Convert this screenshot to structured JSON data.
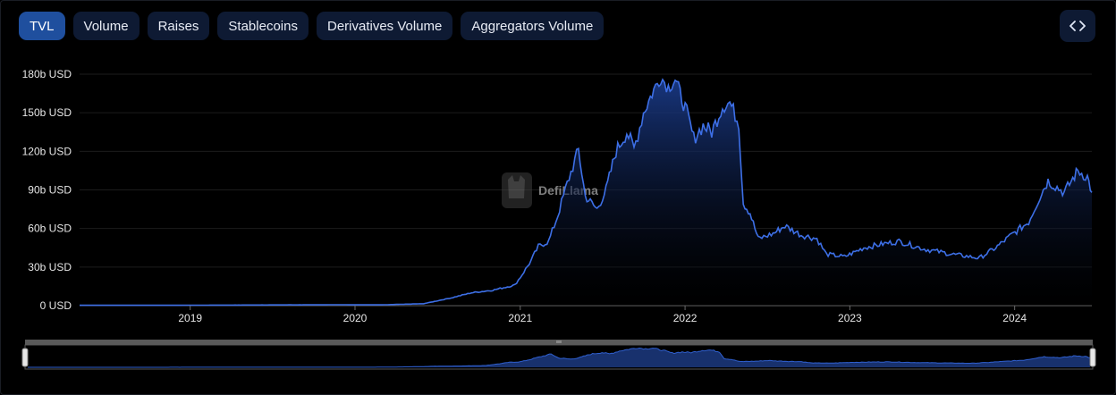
{
  "tabs": [
    {
      "label": "TVL",
      "active": true
    },
    {
      "label": "Volume",
      "active": false
    },
    {
      "label": "Raises",
      "active": false
    },
    {
      "label": "Stablecoins",
      "active": false
    },
    {
      "label": "Derivatives Volume",
      "active": false
    },
    {
      "label": "Aggregators Volume",
      "active": false
    }
  ],
  "embed_icon": "code-brackets-icon",
  "watermark": {
    "text": "DefiLlama",
    "icon": "llama-logo-icon"
  },
  "brush": {
    "range": [
      0,
      1
    ],
    "grip_icon": "grip-lines-icon"
  },
  "colors": {
    "line": "#3d6fe6",
    "area_top": "#1b3c8c",
    "area_bottom": "#000000",
    "tab_active": "#1f4f9e",
    "tab": "#0e1a33"
  },
  "chart_data": {
    "type": "area",
    "title": "",
    "xlabel": "",
    "ylabel": "",
    "y_unit": "USD",
    "ylim": [
      0,
      180
    ],
    "yticks": [
      0,
      30,
      60,
      90,
      120,
      150,
      180
    ],
    "ytick_labels": [
      "0 USD",
      "30b USD",
      "60b USD",
      "90b USD",
      "120b USD",
      "150b USD",
      "180b USD"
    ],
    "xlim": [
      "2018-05-01",
      "2024-06-20"
    ],
    "xticks": [
      "2019-01-01",
      "2020-01-01",
      "2021-01-01",
      "2022-01-01",
      "2023-01-01",
      "2024-01-01"
    ],
    "xtick_labels": [
      "2019",
      "2020",
      "2021",
      "2022",
      "2023",
      "2024"
    ],
    "grid": true,
    "series": [
      {
        "name": "",
        "points": [
          [
            "2018-05-01",
            0.3
          ],
          [
            "2018-12-01",
            0.3
          ],
          [
            "2019-06-01",
            0.5
          ],
          [
            "2019-12-01",
            0.7
          ],
          [
            "2020-03-01",
            0.6
          ],
          [
            "2020-06-01",
            1.5
          ],
          [
            "2020-08-01",
            6
          ],
          [
            "2020-09-15",
            10
          ],
          [
            "2020-11-01",
            12
          ],
          [
            "2020-12-20",
            16
          ],
          [
            "2021-01-05",
            24
          ],
          [
            "2021-01-25",
            35
          ],
          [
            "2021-02-10",
            46
          ],
          [
            "2021-03-05",
            50
          ],
          [
            "2021-03-25",
            70
          ],
          [
            "2021-04-15",
            95
          ],
          [
            "2021-05-10",
            121
          ],
          [
            "2021-05-25",
            85
          ],
          [
            "2021-06-20",
            75
          ],
          [
            "2021-07-10",
            90
          ],
          [
            "2021-08-01",
            120
          ],
          [
            "2021-08-25",
            135
          ],
          [
            "2021-09-10",
            122
          ],
          [
            "2021-10-01",
            150
          ],
          [
            "2021-10-20",
            165
          ],
          [
            "2021-11-08",
            178
          ],
          [
            "2021-11-25",
            170
          ],
          [
            "2021-12-10",
            176
          ],
          [
            "2022-01-05",
            150
          ],
          [
            "2022-01-20",
            130
          ],
          [
            "2022-02-10",
            140
          ],
          [
            "2022-03-01",
            135
          ],
          [
            "2022-03-25",
            155
          ],
          [
            "2022-04-10",
            158
          ],
          [
            "2022-04-30",
            142
          ],
          [
            "2022-05-10",
            80
          ],
          [
            "2022-05-25",
            72
          ],
          [
            "2022-06-12",
            52
          ],
          [
            "2022-07-15",
            56
          ],
          [
            "2022-08-10",
            62
          ],
          [
            "2022-09-15",
            55
          ],
          [
            "2022-10-20",
            52
          ],
          [
            "2022-11-10",
            40
          ],
          [
            "2022-12-20",
            38
          ],
          [
            "2023-02-01",
            45
          ],
          [
            "2023-03-15",
            48
          ],
          [
            "2023-04-20",
            50
          ],
          [
            "2023-06-15",
            44
          ],
          [
            "2023-08-15",
            40
          ],
          [
            "2023-10-15",
            37
          ],
          [
            "2023-11-20",
            45
          ],
          [
            "2023-12-25",
            55
          ],
          [
            "2024-02-01",
            65
          ],
          [
            "2024-03-01",
            88
          ],
          [
            "2024-03-15",
            97
          ],
          [
            "2024-04-20",
            88
          ],
          [
            "2024-05-20",
            105
          ],
          [
            "2024-06-10",
            100
          ],
          [
            "2024-06-20",
            88
          ]
        ]
      }
    ]
  }
}
